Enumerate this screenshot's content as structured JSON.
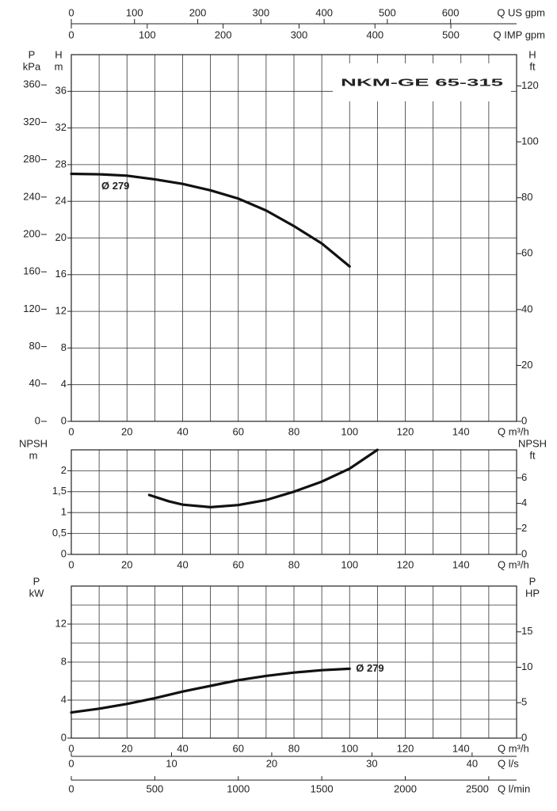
{
  "chart_data": [
    {
      "type": "line",
      "title": "NKM-GE 65-315",
      "x_label": "Q m³/h",
      "xlim": [
        0,
        160
      ],
      "xticks": [
        0,
        20,
        40,
        60,
        80,
        100,
        120,
        140
      ],
      "xminor": [
        10,
        30,
        50,
        70,
        90,
        110,
        130,
        150
      ],
      "y_label": [
        "H",
        "m"
      ],
      "ylim": [
        0,
        40
      ],
      "yticks": [
        0,
        4,
        8,
        12,
        16,
        20,
        24,
        28,
        32,
        36
      ],
      "y3_label": [
        "P",
        "kPa"
      ],
      "y3lim": [
        0,
        392.4
      ],
      "y3ticks": [
        0,
        40,
        80,
        120,
        160,
        200,
        240,
        280,
        320,
        360
      ],
      "y2_label": [
        "H",
        "ft"
      ],
      "y2lim": [
        0,
        131.2
      ],
      "y2ticks": [
        0,
        20,
        40,
        60,
        80,
        100,
        120
      ],
      "top_axes": [
        {
          "label": "Q US gpm",
          "lim": [
            0,
            704.5
          ],
          "ticks": [
            0,
            100,
            200,
            300,
            400,
            500,
            600
          ]
        },
        {
          "label": "Q IMP gpm",
          "lim": [
            0,
            586.6
          ],
          "ticks": [
            0,
            100,
            200,
            300,
            400,
            500
          ]
        }
      ],
      "label_position": "below-start",
      "series": [
        {
          "name": "Ø 279",
          "color": "#111111",
          "x": [
            0,
            10,
            20,
            30,
            40,
            50,
            60,
            70,
            80,
            90,
            100
          ],
          "values": [
            27.0,
            26.95,
            26.8,
            26.4,
            25.9,
            25.2,
            24.3,
            23.0,
            21.3,
            19.4,
            16.9
          ]
        }
      ]
    },
    {
      "type": "line",
      "x_label": "Q m³/h",
      "xlim": [
        0,
        160
      ],
      "xticks": [
        0,
        20,
        40,
        60,
        80,
        100,
        120,
        140
      ],
      "xminor": [
        10,
        30,
        50,
        70,
        90,
        110,
        130,
        150
      ],
      "y_label": [
        "NPSH",
        "m"
      ],
      "ylim": [
        0,
        2.5
      ],
      "yticks": [
        0,
        {
          "value": 0.5,
          "label": "0,5"
        },
        1,
        {
          "value": 1.5,
          "label": "1,5"
        },
        2
      ],
      "y2_label": [
        "NPSH",
        "ft"
      ],
      "y2lim": [
        0,
        8.2
      ],
      "y2ticks": [
        0,
        2,
        4,
        6
      ],
      "series": [
        {
          "color": "#111111",
          "x": [
            28,
            35,
            40,
            50,
            60,
            70,
            80,
            90,
            100,
            110
          ],
          "values": [
            1.42,
            1.27,
            1.19,
            1.13,
            1.18,
            1.3,
            1.5,
            1.74,
            2.05,
            2.5
          ]
        }
      ]
    },
    {
      "type": "line",
      "x_label": "Q m³/h",
      "xlim": [
        0,
        160
      ],
      "xticks": [
        0,
        20,
        40,
        60,
        80,
        100,
        120,
        140
      ],
      "xminor": [
        10,
        30,
        50,
        70,
        90,
        110,
        130,
        150
      ],
      "y_label": [
        "P",
        "kW"
      ],
      "ylim": [
        0,
        16
      ],
      "yticks": [
        0,
        4,
        8,
        12
      ],
      "yminor": [
        2,
        6,
        10,
        14
      ],
      "y2_label": [
        "P",
        "HP"
      ],
      "y2lim": [
        0,
        21.46
      ],
      "y2ticks": [
        0,
        5,
        10,
        15
      ],
      "bottom_axes": [
        {
          "label": "Q l/s",
          "lim": [
            0,
            44.44
          ],
          "ticks": [
            0,
            10,
            20,
            30,
            40
          ]
        },
        {
          "label": "Q l/min",
          "lim": [
            0,
            2666.7
          ],
          "ticks": [
            0,
            500,
            1000,
            1500,
            2000,
            2500
          ]
        }
      ],
      "label_position": "end",
      "series": [
        {
          "name": "Ø 279",
          "color": "#111111",
          "x": [
            0,
            10,
            20,
            30,
            40,
            50,
            60,
            70,
            80,
            90,
            100
          ],
          "values": [
            2.7,
            3.1,
            3.6,
            4.2,
            4.9,
            5.5,
            6.1,
            6.55,
            6.9,
            7.15,
            7.3
          ]
        }
      ]
    }
  ]
}
